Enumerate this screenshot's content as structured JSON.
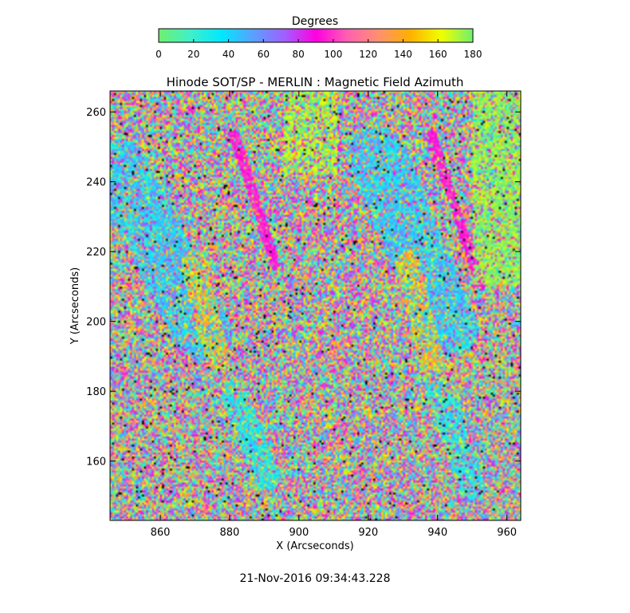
{
  "chart_data": {
    "type": "heatmap",
    "title": "Hinode SOT/SP - MERLIN : Magnetic Field Azimuth",
    "xlabel": "X (Arcseconds)",
    "ylabel": "Y (Arcseconds)",
    "xlim": [
      845.5,
      964
    ],
    "ylim": [
      143,
      266
    ],
    "x_ticks": [
      860,
      880,
      900,
      920,
      940,
      960
    ],
    "y_ticks": [
      160,
      180,
      200,
      220,
      240,
      260
    ],
    "colorbar": {
      "label": "Degrees",
      "range": [
        0,
        180
      ],
      "ticks": [
        0,
        20,
        40,
        60,
        80,
        100,
        120,
        140,
        160,
        180
      ],
      "stops": [
        "#6ef06e",
        "#40f0c8",
        "#00e8ff",
        "#5aa0ff",
        "#a060ff",
        "#ff00e0",
        "#ff60b0",
        "#ff9070",
        "#ffb000",
        "#f0ff00",
        "#6ef06e"
      ]
    },
    "timestamp": "21-Nov-2016 09:34:43.228"
  }
}
